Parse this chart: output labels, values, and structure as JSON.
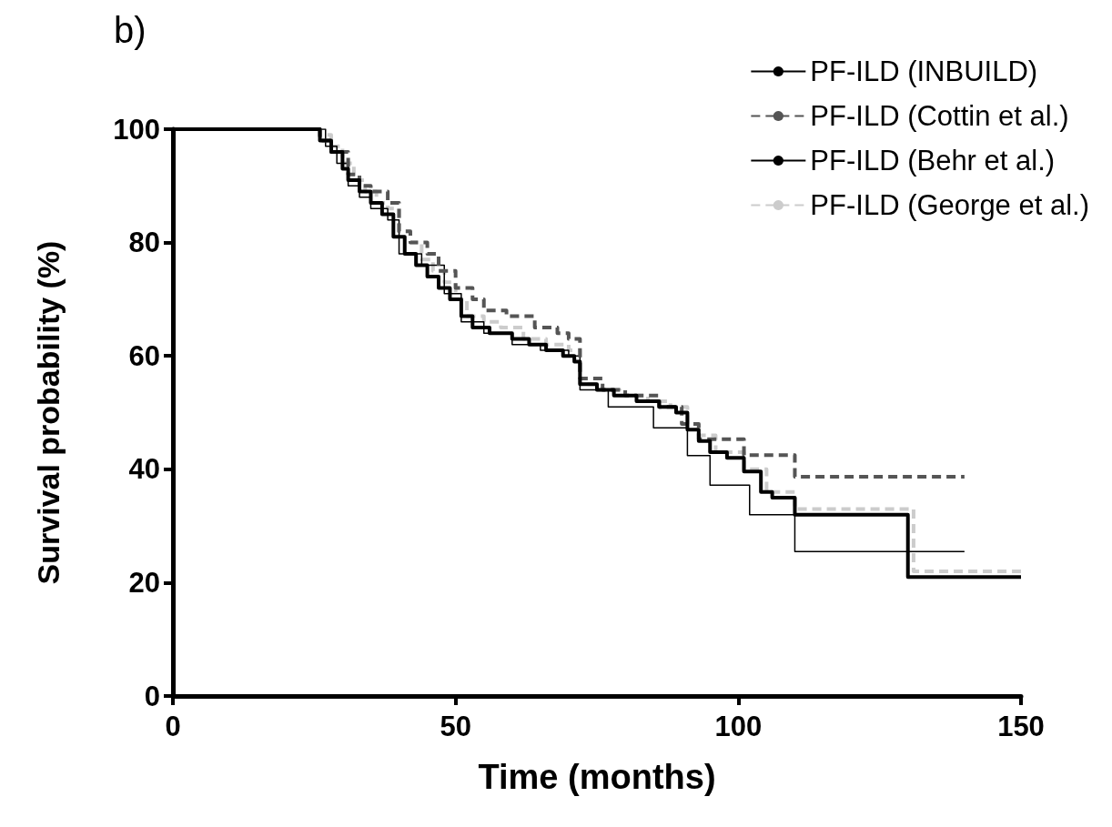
{
  "chart_data": {
    "type": "step",
    "title": "b)",
    "xlabel": "Time (months)",
    "ylabel": "Survival probability (%)",
    "xlim": [
      0,
      150
    ],
    "xticks": [
      0,
      50,
      100,
      150
    ],
    "ylim": [
      0,
      100
    ],
    "yticks": [
      0,
      20,
      40,
      60,
      80,
      100
    ],
    "grid": false,
    "legend": "top right",
    "marker": "none",
    "series": [
      {
        "name": "PF-ILD (INBUILD)",
        "color": "#000000",
        "line_style": "solid",
        "x": [
          0,
          24,
          26,
          28,
          30,
          31,
          33,
          35,
          37,
          39,
          41,
          43,
          45,
          47,
          49,
          51,
          53,
          56,
          60,
          63,
          66,
          69,
          71,
          72,
          75,
          78,
          82,
          86,
          89,
          91,
          93,
          95,
          98,
          101,
          104,
          106,
          110,
          130,
          150
        ],
        "values": [
          100,
          100,
          98,
          96,
          93,
          91,
          89,
          87,
          85,
          81,
          78,
          76,
          74,
          72,
          70,
          67,
          65,
          64,
          63,
          62,
          61,
          60,
          59,
          55,
          54,
          53,
          52,
          51,
          50,
          47,
          45,
          43,
          42,
          39.6,
          36,
          35,
          32,
          21,
          21
        ]
      },
      {
        "name": "PF-ILD (Cottin et al.)",
        "color": "#555555",
        "line_style": "dashed",
        "x": [
          0,
          24,
          26,
          28,
          31,
          33,
          35,
          38,
          40,
          42,
          45,
          47,
          50,
          53,
          55,
          59,
          64,
          68,
          70,
          72,
          76,
          80,
          86,
          90,
          93,
          101,
          110,
          140
        ],
        "values": [
          100,
          100,
          98,
          96,
          92,
          90,
          89,
          87,
          82,
          80,
          78,
          75,
          72,
          70,
          68,
          67,
          65,
          64,
          63,
          56,
          54,
          53,
          51,
          48,
          45.3,
          42.5,
          38.7,
          38.7
        ]
      },
      {
        "name": "PF-ILD (Behr et al.)",
        "color": "#000000",
        "line_style": "solid",
        "x": [
          0,
          24,
          27,
          29,
          31,
          33,
          35,
          38,
          40,
          44,
          48,
          51,
          55,
          60,
          65,
          70,
          72,
          77,
          85,
          91,
          95,
          102,
          110,
          140
        ],
        "values": [
          100,
          100,
          97,
          94,
          90,
          88,
          86,
          84,
          78,
          76,
          71,
          66,
          64,
          62,
          61,
          60,
          54,
          51,
          47.3,
          42.4,
          37.2,
          32,
          25.5,
          25.5
        ]
      },
      {
        "name": "PF-ILD (George et al.)",
        "color": "#cccccc",
        "line_style": "dashed",
        "x": [
          0,
          26,
          28,
          30,
          32,
          34,
          36,
          38,
          40,
          42,
          44,
          46,
          48,
          50,
          52,
          55,
          58,
          62,
          66,
          70,
          72,
          75,
          79,
          84,
          88,
          91,
          93,
          96,
          101,
          105,
          110,
          131,
          150
        ],
        "values": [
          100,
          99,
          97,
          94,
          91,
          89,
          87,
          86,
          82,
          80,
          77,
          75,
          73,
          70,
          67,
          66,
          65,
          63,
          62,
          61,
          55,
          54,
          53,
          52,
          51,
          48,
          46,
          43,
          40,
          36,
          33,
          22,
          22
        ]
      }
    ]
  }
}
